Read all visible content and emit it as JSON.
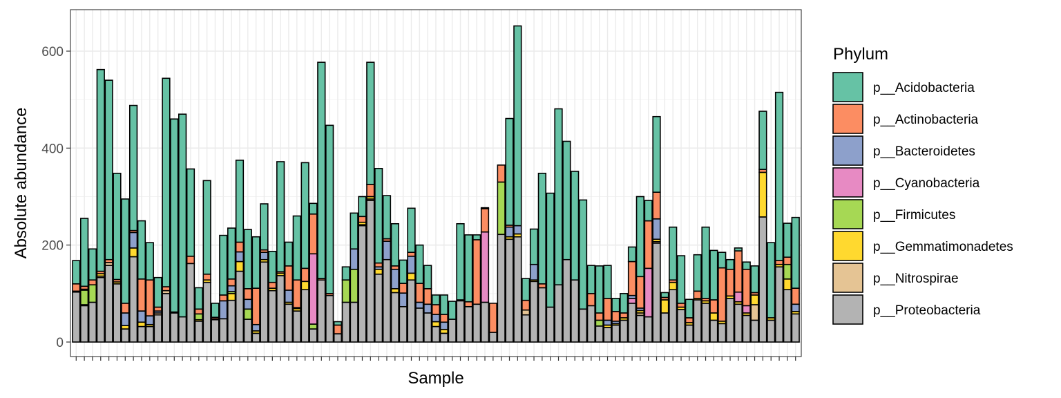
{
  "chart_data": {
    "type": "bar",
    "stacked": true,
    "title": "",
    "xlabel": "Sample",
    "ylabel": "Absolute abundance",
    "ylim": [
      0,
      690
    ],
    "yticks": [
      0,
      200,
      400,
      600
    ],
    "x_tick_labels_shown": false,
    "grid": true,
    "legend": {
      "title": "Phylum",
      "placement": "right",
      "entries": [
        "p__Acidobacteria",
        "p__Actinobacteria",
        "p__Bacteroidetes",
        "p__Cyanobacteria",
        "p__Firmicutes",
        "p__Gemmatimonadetes",
        "p__Nitrospirae",
        "p__Proteobacteria"
      ]
    },
    "stack_order_bottom_to_top": [
      "p__Proteobacteria",
      "p__Nitrospirae",
      "p__Gemmatimonadetes",
      "p__Firmicutes",
      "p__Cyanobacteria",
      "p__Bacteroidetes",
      "p__Actinobacteria",
      "p__Acidobacteria"
    ],
    "colors": {
      "p__Acidobacteria": "#66C2A5",
      "p__Actinobacteria": "#FC8D62",
      "p__Bacteroidetes": "#8DA0CB",
      "p__Cyanobacteria": "#E78AC3",
      "p__Firmicutes": "#A6D854",
      "p__Gemmatimonadetes": "#FFD92F",
      "p__Nitrospirae": "#E5C494",
      "p__Proteobacteria": "#B3B3B3"
    },
    "samples": [
      {
        "p__Proteobacteria": 103,
        "p__Gemmatimonadetes": 2,
        "p__Actinobacteria": 15,
        "p__Acidobacteria": 48
      },
      {
        "p__Proteobacteria": 75,
        "p__Gemmatimonadetes": 2,
        "p__Firmicutes": 30,
        "p__Bacteroidetes": 2,
        "p__Actinobacteria": 6,
        "p__Acidobacteria": 140
      },
      {
        "p__Proteobacteria": 82,
        "p__Firmicutes": 36,
        "p__Actinobacteria": 10,
        "p__Acidobacteria": 64
      },
      {
        "p__Proteobacteria": 133,
        "p__Nitrospirae": 3,
        "p__Gemmatimonadetes": 5,
        "p__Actinobacteria": 5,
        "p__Acidobacteria": 416
      },
      {
        "p__Proteobacteria": 158,
        "p__Nitrospirae": 6,
        "p__Actinobacteria": 6,
        "p__Acidobacteria": 370
      },
      {
        "p__Proteobacteria": 120,
        "p__Gemmatimonadetes": 4,
        "p__Actinobacteria": 5,
        "p__Acidobacteria": 219
      },
      {
        "p__Proteobacteria": 27,
        "p__Gemmatimonadetes": 7,
        "p__Bacteroidetes": 26,
        "p__Actinobacteria": 20,
        "p__Acidobacteria": 215
      },
      {
        "p__Proteobacteria": 176,
        "p__Gemmatimonadetes": 18,
        "p__Bacteroidetes": 32,
        "p__Actinobacteria": 4,
        "p__Acidobacteria": 258
      },
      {
        "p__Proteobacteria": 32,
        "p__Gemmatimonadetes": 9,
        "p__Bacteroidetes": 23,
        "p__Actinobacteria": 66,
        "p__Acidobacteria": 120
      },
      {
        "p__Proteobacteria": 32,
        "p__Gemmatimonadetes": 4,
        "p__Bacteroidetes": 18,
        "p__Actinobacteria": 74,
        "p__Acidobacteria": 77
      },
      {
        "p__Proteobacteria": 56,
        "p__Nitrospirae": 4,
        "p__Bacteroidetes": 4,
        "p__Actinobacteria": 8,
        "p__Acidobacteria": 61
      },
      {
        "p__Proteobacteria": 100,
        "p__Nitrospirae": 6,
        "p__Actinobacteria": 8,
        "p__Acidobacteria": 430
      },
      {
        "p__Proteobacteria": 60,
        "p__Actinobacteria": 2,
        "p__Acidobacteria": 398
      },
      {
        "p__Proteobacteria": 52,
        "p__Acidobacteria": 418
      },
      {
        "p__Proteobacteria": 162,
        "p__Actinobacteria": 15,
        "p__Acidobacteria": 180
      },
      {
        "p__Proteobacteria": 43,
        "p__Gemmatimonadetes": 3,
        "p__Firmicutes": 12,
        "p__Actinobacteria": 10,
        "p__Acidobacteria": 44
      },
      {
        "p__Proteobacteria": 123,
        "p__Gemmatimonadetes": 5,
        "p__Actinobacteria": 12,
        "p__Acidobacteria": 193
      },
      {
        "p__Proteobacteria": 46,
        "p__Gemmatimonadetes": 2,
        "p__Actinobacteria": 3,
        "p__Acidobacteria": 29
      },
      {
        "p__Proteobacteria": 48,
        "p__Bacteroidetes": 37,
        "p__Actinobacteria": 12,
        "p__Acidobacteria": 123
      },
      {
        "p__Proteobacteria": 86,
        "p__Gemmatimonadetes": 14,
        "p__Firmicutes": 4,
        "p__Bacteroidetes": 12,
        "p__Actinobacteria": 14,
        "p__Acidobacteria": 105
      },
      {
        "p__Proteobacteria": 146,
        "p__Gemmatimonadetes": 20,
        "p__Bacteroidetes": 20,
        "p__Actinobacteria": 20,
        "p__Acidobacteria": 169
      },
      {
        "p__Proteobacteria": 47,
        "p__Firmicutes": 21,
        "p__Bacteroidetes": 20,
        "p__Actinobacteria": 22,
        "p__Acidobacteria": 122
      },
      {
        "p__Proteobacteria": 18,
        "p__Gemmatimonadetes": 5,
        "p__Bacteroidetes": 13,
        "p__Actinobacteria": 75,
        "p__Acidobacteria": 106
      },
      {
        "p__Proteobacteria": 165,
        "p__Gemmatimonadetes": 5,
        "p__Bacteroidetes": 15,
        "p__Actinobacteria": 5,
        "p__Acidobacteria": 95
      },
      {
        "p__Proteobacteria": 106,
        "p__Gemmatimonadetes": 5,
        "p__Actinobacteria": 12,
        "p__Acidobacteria": 64
      },
      {
        "p__Proteobacteria": 137,
        "p__Gemmatimonadetes": 5,
        "p__Actinobacteria": 3,
        "p__Acidobacteria": 227
      },
      {
        "p__Proteobacteria": 78,
        "p__Gemmatimonadetes": 4,
        "p__Bacteroidetes": 25,
        "p__Actinobacteria": 50,
        "p__Acidobacteria": 49
      },
      {
        "p__Proteobacteria": 64,
        "p__Gemmatimonadetes": 5,
        "p__Bacteroidetes": 2,
        "p__Actinobacteria": 57,
        "p__Acidobacteria": 132
      },
      {
        "p__Proteobacteria": 108,
        "p__Gemmatimonadetes": 17,
        "p__Actinobacteria": 27,
        "p__Acidobacteria": 218
      },
      {
        "p__Proteobacteria": 27,
        "p__Firmicutes": 10,
        "p__Cyanobacteria": 145,
        "p__Actinobacteria": 82,
        "p__Acidobacteria": 22
      },
      {
        "p__Proteobacteria": 128,
        "p__Actinobacteria": 3,
        "p__Acidobacteria": 446
      },
      {
        "p__Proteobacteria": 96,
        "p__Actinobacteria": 4,
        "p__Acidobacteria": 347
      },
      {
        "p__Proteobacteria": 17,
        "p__Actinobacteria": 18,
        "p__Acidobacteria": 7
      },
      {
        "p__Proteobacteria": 82,
        "p__Firmicutes": 46,
        "p__Acidobacteria": 27
      },
      {
        "p__Proteobacteria": 82,
        "p__Firmicutes": 68,
        "p__Bacteroidetes": 42,
        "p__Acidobacteria": 74
      },
      {
        "p__Proteobacteria": 240,
        "p__Nitrospirae": 2,
        "p__Gemmatimonadetes": 5,
        "p__Actinobacteria": 12,
        "p__Acidobacteria": 41
      },
      {
        "p__Proteobacteria": 292,
        "p__Nitrospirae": 3,
        "p__Gemmatimonadetes": 5,
        "p__Actinobacteria": 25,
        "p__Acidobacteria": 252
      },
      {
        "p__Proteobacteria": 140,
        "p__Gemmatimonadetes": 10,
        "p__Bacteroidetes": 5,
        "p__Actinobacteria": 8,
        "p__Acidobacteria": 195
      },
      {
        "p__Proteobacteria": 170,
        "p__Bacteroidetes": 38,
        "p__Actinobacteria": 5,
        "p__Acidobacteria": 89
      },
      {
        "p__Proteobacteria": 102,
        "p__Gemmatimonadetes": 8,
        "p__Bacteroidetes": 40,
        "p__Actinobacteria": 7,
        "p__Acidobacteria": 87
      },
      {
        "p__Proteobacteria": 73,
        "p__Bacteroidetes": 28,
        "p__Actinobacteria": 20,
        "p__Acidobacteria": 48
      },
      {
        "p__Proteobacteria": 128,
        "p__Gemmatimonadetes": 14,
        "p__Bacteroidetes": 35,
        "p__Actinobacteria": 8,
        "p__Acidobacteria": 91
      },
      {
        "p__Proteobacteria": 70,
        "p__Bacteroidetes": 12,
        "p__Actinobacteria": 39,
        "p__Acidobacteria": 79
      },
      {
        "p__Proteobacteria": 60,
        "p__Bacteroidetes": 18,
        "p__Actinobacteria": 32,
        "p__Acidobacteria": 48
      },
      {
        "p__Proteobacteria": 32,
        "p__Gemmatimonadetes": 10,
        "p__Bacteroidetes": 15,
        "p__Actinobacteria": 20,
        "p__Acidobacteria": 20
      },
      {
        "p__Proteobacteria": 18,
        "p__Gemmatimonadetes": 8,
        "p__Bacteroidetes": 15,
        "p__Actinobacteria": 16,
        "p__Acidobacteria": 40
      },
      {
        "p__Proteobacteria": 47,
        "p__Acidobacteria": 37
      },
      {
        "p__Proteobacteria": 85,
        "p__Gemmatimonadetes": 2,
        "p__Acidobacteria": 157
      },
      {
        "p__Proteobacteria": 73,
        "p__Actinobacteria": 10,
        "p__Acidobacteria": 138
      },
      {
        "p__Proteobacteria": 78,
        "p__Actinobacteria": 133,
        "p__Acidobacteria": 10
      },
      {
        "p__Proteobacteria": 82,
        "p__Cyanobacteria": 145,
        "p__Actinobacteria": 48,
        "p__Acidobacteria": 2
      },
      {
        "p__Proteobacteria": 20,
        "p__Actinobacteria": 60
      },
      {
        "p__Proteobacteria": 222,
        "p__Firmicutes": 108,
        "p__Actinobacteria": 35
      },
      {
        "p__Proteobacteria": 212,
        "p__Gemmatimonadetes": 5,
        "p__Bacteroidetes": 20,
        "p__Actinobacteria": 4,
        "p__Acidobacteria": 220
      },
      {
        "p__Proteobacteria": 217,
        "p__Gemmatimonadetes": 6,
        "p__Bacteroidetes": 17,
        "p__Acidobacteria": 412
      },
      {
        "p__Proteobacteria": 56,
        "p__Nitrospirae": 10,
        "p__Actinobacteria": 20,
        "p__Acidobacteria": 45
      },
      {
        "p__Proteobacteria": 125,
        "p__Gemmatimonadetes": 3,
        "p__Bacteroidetes": 32,
        "p__Acidobacteria": 73
      },
      {
        "p__Proteobacteria": 112,
        "p__Actinobacteria": 8,
        "p__Acidobacteria": 228
      },
      {
        "p__Proteobacteria": 72,
        "p__Acidobacteria": 235
      },
      {
        "p__Proteobacteria": 118,
        "p__Acidobacteria": 363
      },
      {
        "p__Proteobacteria": 170,
        "p__Acidobacteria": 244
      },
      {
        "p__Proteobacteria": 128,
        "p__Acidobacteria": 224
      },
      {
        "p__Proteobacteria": 68,
        "p__Acidobacteria": 225
      },
      {
        "p__Proteobacteria": 75,
        "p__Actinobacteria": 25,
        "p__Acidobacteria": 58
      },
      {
        "p__Proteobacteria": 33,
        "p__Firmicutes": 12,
        "p__Actinobacteria": 15,
        "p__Acidobacteria": 97
      },
      {
        "p__Proteobacteria": 30,
        "p__Gemmatimonadetes": 5,
        "p__Bacteroidetes": 10,
        "p__Actinobacteria": 45,
        "p__Acidobacteria": 68
      },
      {
        "p__Proteobacteria": 35,
        "p__Gemmatimonadetes": 3,
        "p__Bacteroidetes": 5,
        "p__Actinobacteria": 20,
        "p__Acidobacteria": 27
      },
      {
        "p__Proteobacteria": 45,
        "p__Gemmatimonadetes": 5,
        "p__Actinobacteria": 10,
        "p__Acidobacteria": 40
      },
      {
        "p__Proteobacteria": 80,
        "p__Cyanobacteria": 10,
        "p__Bacteroidetes": 6,
        "p__Actinobacteria": 70,
        "p__Acidobacteria": 30
      },
      {
        "p__Proteobacteria": 55,
        "p__Nitrospirae": 5,
        "p__Gemmatimonadetes": 5,
        "p__Bacteroidetes": 5,
        "p__Actinobacteria": 65,
        "p__Acidobacteria": 165
      },
      {
        "p__Proteobacteria": 52,
        "p__Cyanobacteria": 100,
        "p__Actinobacteria": 98,
        "p__Acidobacteria": 42
      },
      {
        "p__Proteobacteria": 204,
        "p__Nitrospirae": 3,
        "p__Gemmatimonadetes": 5,
        "p__Bacteroidetes": 42,
        "p__Actinobacteria": 55,
        "p__Acidobacteria": 156
      },
      {
        "p__Proteobacteria": 60,
        "p__Gemmatimonadetes": 27,
        "p__Actinobacteria": 5,
        "p__Acidobacteria": 10
      },
      {
        "p__Proteobacteria": 108,
        "p__Gemmatimonadetes": 15,
        "p__Actinobacteria": 5,
        "p__Acidobacteria": 109
      },
      {
        "p__Proteobacteria": 67,
        "p__Gemmatimonadetes": 5,
        "p__Actinobacteria": 8,
        "p__Acidobacteria": 98
      },
      {
        "p__Proteobacteria": 35,
        "p__Gemmatimonadetes": 5,
        "p__Actinobacteria": 10,
        "p__Acidobacteria": 38
      },
      {
        "p__Proteobacteria": 87,
        "p__Gemmatimonadetes": 3,
        "p__Actinobacteria": 15,
        "p__Acidobacteria": 75
      },
      {
        "p__Proteobacteria": 80,
        "p__Gemmatimonadetes": 5,
        "p__Actinobacteria": 5,
        "p__Acidobacteria": 147
      },
      {
        "p__Proteobacteria": 45,
        "p__Gemmatimonadetes": 15,
        "p__Actinobacteria": 27,
        "p__Acidobacteria": 102
      },
      {
        "p__Proteobacteria": 38,
        "p__Gemmatimonadetes": 5,
        "p__Actinobacteria": 110,
        "p__Acidobacteria": 32
      },
      {
        "p__Proteobacteria": 90,
        "p__Gemmatimonadetes": 5,
        "p__Actinobacteria": 55,
        "p__Acidobacteria": 20
      },
      {
        "p__Proteobacteria": 78,
        "p__Gemmatimonadetes": 5,
        "p__Cyanobacteria": 20,
        "p__Actinobacteria": 85,
        "p__Acidobacteria": 6
      },
      {
        "p__Proteobacteria": 55,
        "p__Gemmatimonadetes": 5,
        "p__Cyanobacteria": 15,
        "p__Actinobacteria": 75,
        "p__Acidobacteria": 15
      },
      {
        "p__Proteobacteria": 45,
        "p__Nitrospirae": 32,
        "p__Gemmatimonadetes": 20,
        "p__Actinobacteria": 5,
        "p__Acidobacteria": 55
      },
      {
        "p__Proteobacteria": 258,
        "p__Gemmatimonadetes": 92,
        "p__Actinobacteria": 6,
        "p__Acidobacteria": 120
      },
      {
        "p__Proteobacteria": 45,
        "p__Gemmatimonadetes": 5,
        "p__Acidobacteria": 155
      },
      {
        "p__Proteobacteria": 155,
        "p__Gemmatimonadetes": 5,
        "p__Actinobacteria": 8,
        "p__Acidobacteria": 347
      },
      {
        "p__Proteobacteria": 108,
        "p__Gemmatimonadetes": 22,
        "p__Firmicutes": 30,
        "p__Actinobacteria": 15,
        "p__Acidobacteria": 70
      },
      {
        "p__Proteobacteria": 58,
        "p__Gemmatimonadetes": 5,
        "p__Bacteroidetes": 15,
        "p__Actinobacteria": 33,
        "p__Acidobacteria": 146
      }
    ]
  }
}
